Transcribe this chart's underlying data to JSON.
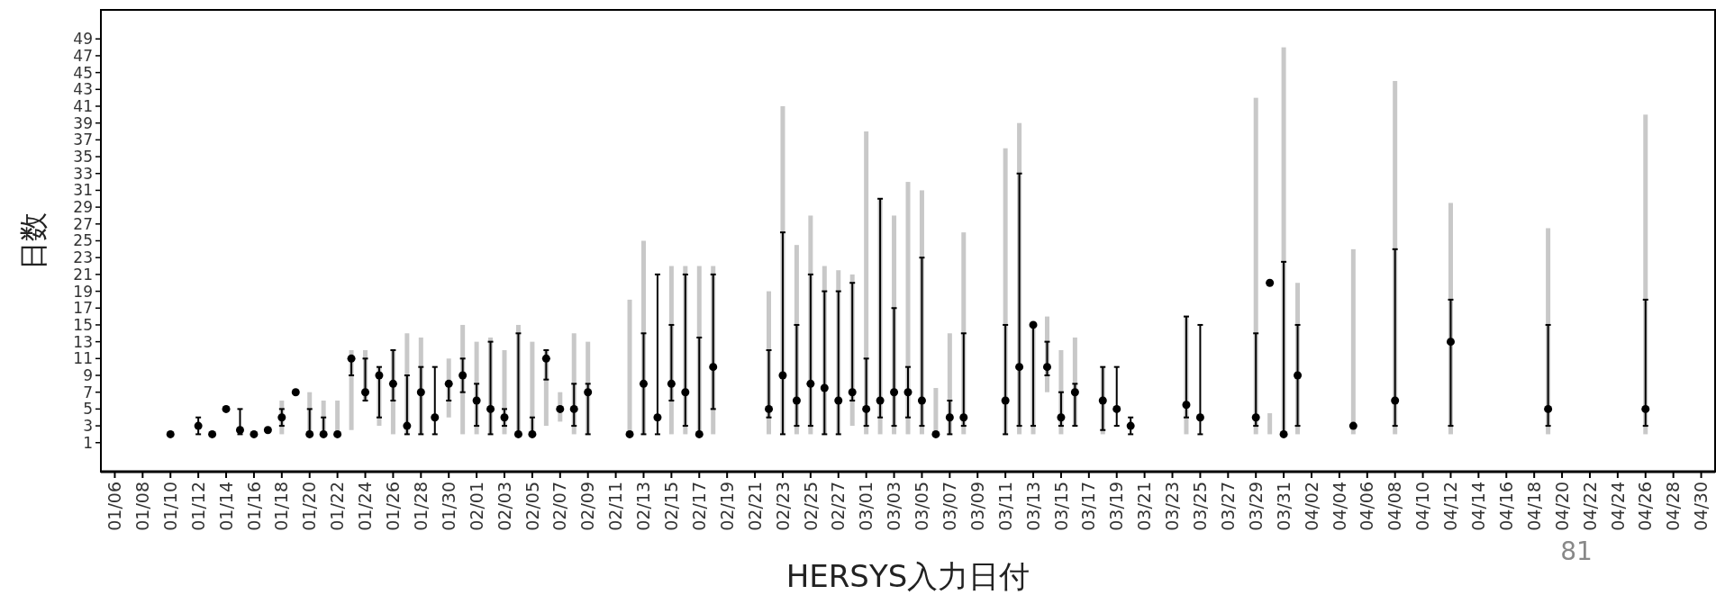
{
  "chart_data": {
    "type": "scatter",
    "xlabel": "HERSYS入力日付",
    "ylabel": "日数",
    "annotations": [
      "81"
    ],
    "x": [
      "--01-10",
      "--01-12",
      "--01-13",
      "--01-14",
      "--01-15",
      "--01-16",
      "--01-17",
      "--01-18",
      "--01-19",
      "--01-20",
      "--01-21",
      "--01-22",
      "--01-23",
      "--01-24",
      "--01-25",
      "--01-26",
      "--01-27",
      "--01-28",
      "--01-29",
      "--01-30",
      "--01-31",
      "--02-01",
      "--02-02",
      "--02-03",
      "--02-04",
      "--02-05",
      "--02-06",
      "--02-07",
      "--02-08",
      "--02-09",
      "--02-12",
      "--02-13",
      "--02-14",
      "--02-15",
      "--02-16",
      "--02-17",
      "--02-18",
      "--02-22",
      "--02-23",
      "--02-24",
      "--02-25",
      "--02-26",
      "--02-27",
      "--02-28",
      "--03-01",
      "--03-02",
      "--03-03",
      "--03-04",
      "--03-05",
      "--03-06",
      "--03-07",
      "--03-08",
      "--03-11",
      "--03-12",
      "--03-13",
      "--03-14",
      "--03-15",
      "--03-16",
      "--03-18",
      "--03-19",
      "--03-20",
      "--03-24",
      "--03-25",
      "--03-29",
      "--03-30",
      "--03-31",
      "--04-01",
      "--04-05",
      "--04-08",
      "--04-12",
      "--04-19",
      "--04-26"
    ],
    "series": [
      {
        "type": "bar",
        "color": "#c8c8c8",
        "base": [
          null,
          null,
          null,
          null,
          null,
          null,
          null,
          2,
          null,
          2,
          2,
          2,
          2.5,
          6,
          3,
          2,
          2,
          2,
          null,
          4,
          2,
          2,
          2,
          2,
          2,
          2,
          3,
          3.5,
          2,
          2,
          2,
          2,
          null,
          2,
          2,
          2,
          2,
          2,
          2,
          2,
          2,
          2,
          2,
          3,
          2,
          2,
          2,
          2,
          2,
          2,
          2,
          2,
          2,
          2,
          2,
          7,
          2,
          3,
          2,
          null,
          null,
          2,
          null,
          2,
          2,
          2,
          2,
          2,
          2,
          2,
          2,
          2
        ],
        "values": [
          null,
          null,
          null,
          null,
          null,
          null,
          null,
          4,
          null,
          5,
          4,
          4,
          9.5,
          6,
          7,
          10,
          12,
          11.5,
          null,
          7,
          13,
          11,
          11.5,
          10,
          13,
          11,
          9,
          3.5,
          12,
          11,
          16,
          23,
          null,
          20,
          20,
          20,
          20,
          17,
          39,
          22.5,
          26,
          20,
          19.5,
          18,
          36,
          28,
          26,
          30,
          29,
          5.5,
          12,
          24,
          34,
          37,
          13,
          9,
          10,
          10.5,
          8,
          null,
          null,
          14,
          null,
          40,
          2.5,
          46,
          18,
          22,
          42,
          27.5,
          24.5,
          38
        ]
      },
      {
        "color": "#000000",
        "marker": "circle",
        "values": [
          2,
          3,
          2,
          5,
          2.5,
          2,
          2.5,
          4,
          7,
          2,
          2,
          2,
          11,
          7,
          9,
          8,
          3,
          7,
          4,
          8,
          9,
          6,
          5,
          4,
          2,
          2,
          11,
          5,
          5,
          7,
          2,
          8,
          4,
          8,
          7,
          2,
          10,
          5,
          9,
          6,
          8,
          7.5,
          6,
          7,
          5,
          6,
          7,
          7,
          6,
          2,
          4,
          4,
          6,
          10,
          15,
          10,
          4,
          7,
          6,
          5,
          3,
          5.5,
          4,
          4,
          20,
          2,
          9,
          3,
          6,
          13,
          5,
          5
        ],
        "errors": [
          null,
          [
            2,
            4
          ],
          null,
          null,
          [
            2,
            5
          ],
          null,
          null,
          [
            3,
            5
          ],
          null,
          [
            2,
            5
          ],
          [
            2,
            4
          ],
          null,
          [
            9,
            11
          ],
          [
            6,
            11
          ],
          [
            4,
            10
          ],
          [
            6,
            12
          ],
          [
            2,
            9
          ],
          [
            2,
            10
          ],
          [
            2,
            10
          ],
          [
            6,
            8
          ],
          [
            7,
            11
          ],
          [
            3,
            8
          ],
          [
            2,
            13
          ],
          [
            3,
            5
          ],
          [
            2,
            14
          ],
          [
            2,
            4
          ],
          [
            8.5,
            12
          ],
          null,
          [
            3,
            8
          ],
          [
            2,
            8
          ],
          null,
          [
            2,
            14
          ],
          [
            2,
            21
          ],
          [
            6,
            15
          ],
          [
            3,
            21
          ],
          [
            2,
            13.5
          ],
          [
            5,
            21
          ],
          [
            4,
            12
          ],
          [
            2,
            26
          ],
          [
            3,
            15
          ],
          [
            3,
            21
          ],
          [
            2,
            19
          ],
          [
            2,
            19
          ],
          [
            6,
            20
          ],
          [
            3,
            11
          ],
          [
            4,
            30
          ],
          [
            3,
            17
          ],
          [
            4,
            10
          ],
          [
            3,
            23
          ],
          null,
          [
            2,
            6
          ],
          [
            3,
            14
          ],
          [
            2,
            15
          ],
          [
            3,
            33
          ],
          [
            3,
            15
          ],
          [
            9,
            13
          ],
          [
            3,
            7
          ],
          [
            3,
            8
          ],
          [
            2.5,
            10
          ],
          [
            3,
            10
          ],
          [
            2,
            4
          ],
          [
            4,
            16
          ],
          [
            2,
            15
          ],
          [
            3,
            14
          ],
          null,
          [
            2,
            22.5
          ],
          [
            3,
            15
          ],
          null,
          [
            3,
            24
          ],
          [
            3,
            18
          ],
          [
            3,
            15
          ],
          [
            3,
            18
          ]
        ]
      }
    ],
    "xlim": [
      "--01-05",
      "--05-01"
    ],
    "xticks": [
      {
        "value": "--01-06",
        "label": "01/06"
      },
      {
        "value": "--01-08",
        "label": "01/08"
      },
      {
        "value": "--01-10",
        "label": "01/10"
      },
      {
        "value": "--01-12",
        "label": "01/12"
      },
      {
        "value": "--01-14",
        "label": "01/14"
      },
      {
        "value": "--01-16",
        "label": "01/16"
      },
      {
        "value": "--01-18",
        "label": "01/18"
      },
      {
        "value": "--01-20",
        "label": "01/20"
      },
      {
        "value": "--01-22",
        "label": "01/22"
      },
      {
        "value": "--01-24",
        "label": "01/24"
      },
      {
        "value": "--01-26",
        "label": "01/26"
      },
      {
        "value": "--01-28",
        "label": "01/28"
      },
      {
        "value": "--01-30",
        "label": "01/30"
      },
      {
        "value": "--02-01",
        "label": "02/01"
      },
      {
        "value": "--02-03",
        "label": "02/03"
      },
      {
        "value": "--02-05",
        "label": "02/05"
      },
      {
        "value": "--02-07",
        "label": "02/07"
      },
      {
        "value": "--02-09",
        "label": "02/09"
      },
      {
        "value": "--02-11",
        "label": "02/11"
      },
      {
        "value": "--02-13",
        "label": "02/13"
      },
      {
        "value": "--02-15",
        "label": "02/15"
      },
      {
        "value": "--02-17",
        "label": "02/17"
      },
      {
        "value": "--02-19",
        "label": "02/19"
      },
      {
        "value": "--02-21",
        "label": "02/21"
      },
      {
        "value": "--02-23",
        "label": "02/23"
      },
      {
        "value": "--02-25",
        "label": "02/25"
      },
      {
        "value": "--02-27",
        "label": "02/27"
      },
      {
        "value": "--03-01",
        "label": "03/01"
      },
      {
        "value": "--03-03",
        "label": "03/03"
      },
      {
        "value": "--03-05",
        "label": "03/05"
      },
      {
        "value": "--03-07",
        "label": "03/07"
      },
      {
        "value": "--03-09",
        "label": "03/09"
      },
      {
        "value": "--03-11",
        "label": "03/11"
      },
      {
        "value": "--03-13",
        "label": "03/13"
      },
      {
        "value": "--03-15",
        "label": "03/15"
      },
      {
        "value": "--03-17",
        "label": "03/17"
      },
      {
        "value": "--03-19",
        "label": "03/19"
      },
      {
        "value": "--03-21",
        "label": "03/21"
      },
      {
        "value": "--03-23",
        "label": "03/23"
      },
      {
        "value": "--03-25",
        "label": "03/25"
      },
      {
        "value": "--03-27",
        "label": "03/27"
      },
      {
        "value": "--03-29",
        "label": "03/29"
      },
      {
        "value": "--03-31",
        "label": "03/31"
      },
      {
        "value": "--04-02",
        "label": "04/02"
      },
      {
        "value": "--04-04",
        "label": "04/04"
      },
      {
        "value": "--04-06",
        "label": "04/06"
      },
      {
        "value": "--04-08",
        "label": "04/08"
      },
      {
        "value": "--04-10",
        "label": "04/10"
      },
      {
        "value": "--04-12",
        "label": "04/12"
      },
      {
        "value": "--04-14",
        "label": "04/14"
      },
      {
        "value": "--04-16",
        "label": "04/16"
      },
      {
        "value": "--04-18",
        "label": "04/18"
      },
      {
        "value": "--04-20",
        "label": "04/20"
      },
      {
        "value": "--04-22",
        "label": "04/22"
      },
      {
        "value": "--04-24",
        "label": "04/24"
      },
      {
        "value": "--04-26",
        "label": "04/26"
      },
      {
        "value": "--04-28",
        "label": "04/28"
      },
      {
        "value": "--04-30",
        "label": "04/30"
      }
    ],
    "ylim": [
      -2.45,
      52.45
    ],
    "yticks": [
      1,
      3,
      5,
      7,
      9,
      11,
      13,
      15,
      17,
      19,
      21,
      23,
      25,
      27,
      29,
      31,
      33,
      35,
      37,
      39,
      41,
      43,
      45,
      47,
      49
    ],
    "grid": false
  }
}
